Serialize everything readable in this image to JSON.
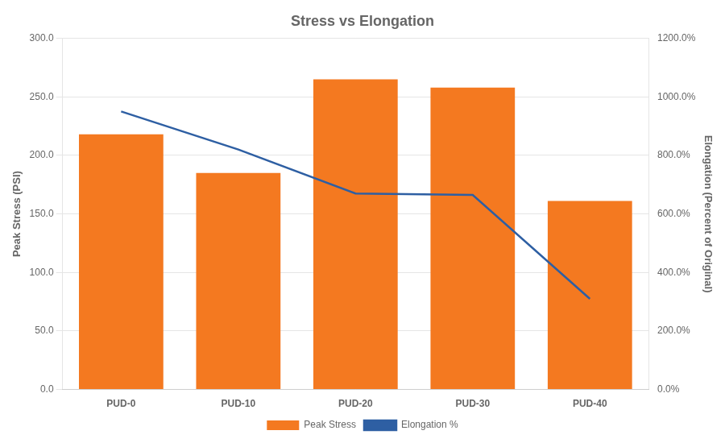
{
  "chart_data": {
    "type": "bar",
    "title": "Stress vs Elongation",
    "categories": [
      "PUD-0",
      "PUD-10",
      "PUD-20",
      "PUD-30",
      "PUD-40"
    ],
    "ylabel": "Peak Stress (PSI)",
    "y2label": "Elongation (Percent of Original)",
    "series": [
      {
        "name": "Peak Stress",
        "type": "bar",
        "color": "#F47920",
        "values": [
          218,
          185,
          265,
          258,
          161
        ]
      },
      {
        "name": "Elongation %",
        "type": "line",
        "color": "#2E5FA3",
        "axis": "y2",
        "marker": "none",
        "values": [
          950,
          820,
          670,
          665,
          310
        ]
      }
    ],
    "ylim": [
      0,
      300
    ],
    "yticks": [
      {
        "value": 0,
        "label": "0.0"
      },
      {
        "value": 50,
        "label": "50.0"
      },
      {
        "value": 100,
        "label": "100.0"
      },
      {
        "value": 150,
        "label": "150.0"
      },
      {
        "value": 200,
        "label": "200.0"
      },
      {
        "value": 250,
        "label": "250.0"
      },
      {
        "value": 300,
        "label": "300.0"
      }
    ],
    "y2lim": [
      0,
      1200
    ],
    "y2ticks": [
      {
        "value": 0,
        "label": "0.0%"
      },
      {
        "value": 200,
        "label": "200.0%"
      },
      {
        "value": 400,
        "label": "400.0%"
      },
      {
        "value": 600,
        "label": "600.0%"
      },
      {
        "value": 800,
        "label": "800.0%"
      },
      {
        "value": 1000,
        "label": "1000.0%"
      },
      {
        "value": 1200,
        "label": "1200.0%"
      }
    ],
    "grid": true,
    "legend": "bottom"
  }
}
